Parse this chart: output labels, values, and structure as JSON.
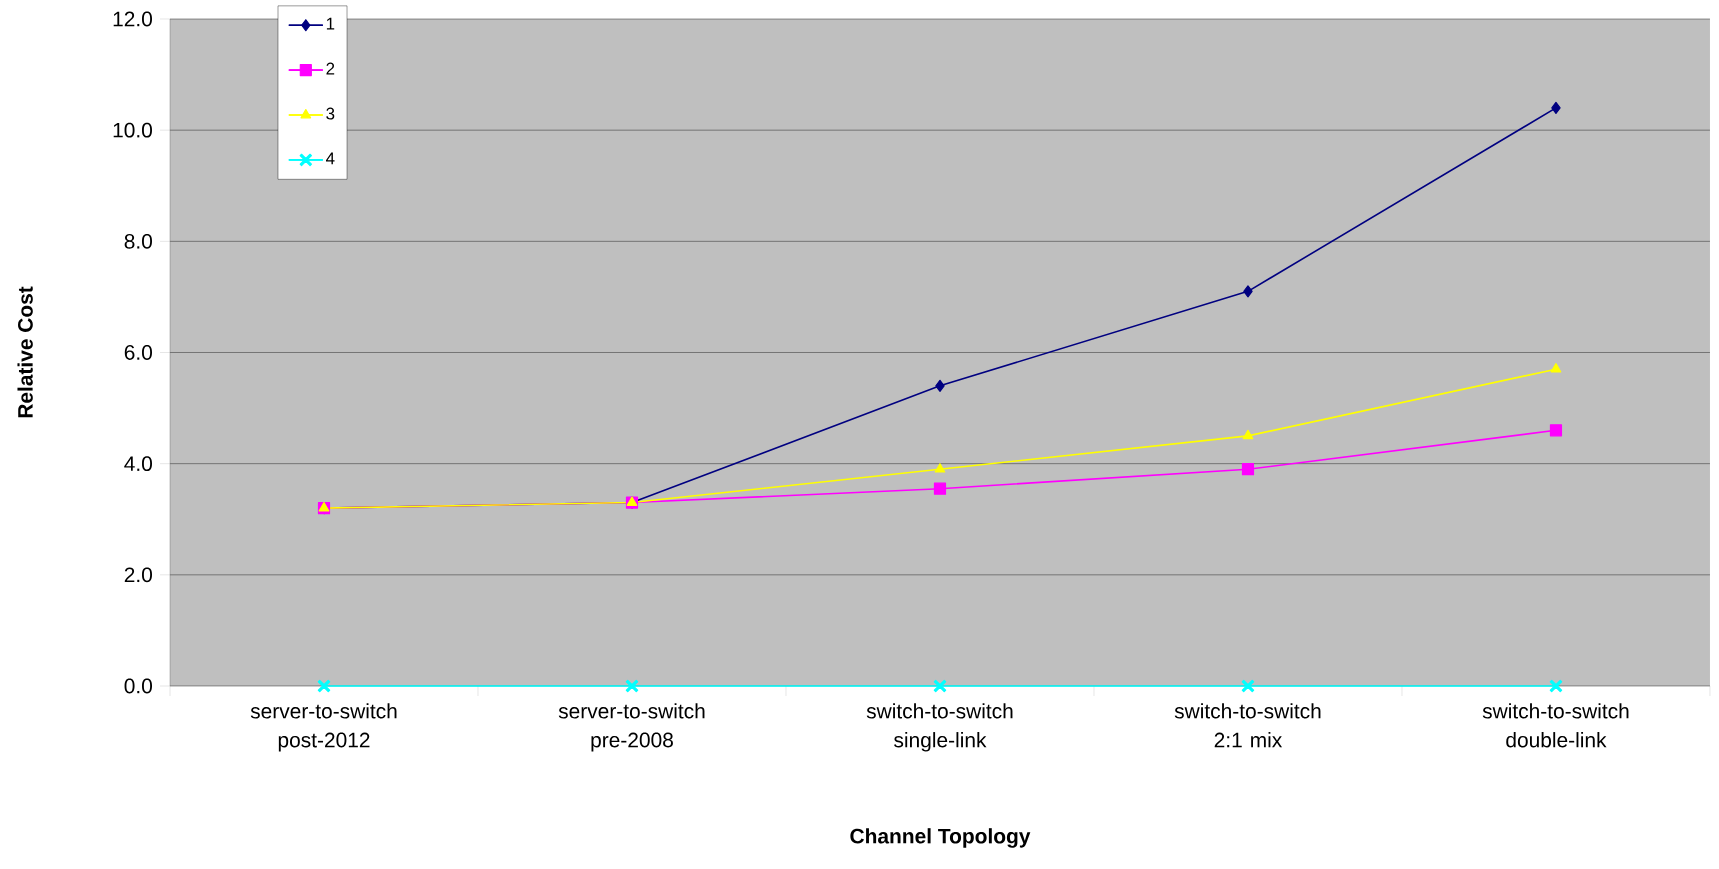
{
  "chart_data": {
    "type": "line",
    "xlabel": "Channel Topology",
    "ylabel": "Relative Cost",
    "categories": [
      "server-to-switch post-2012",
      "server-to-switch pre-2008",
      "switch-to-switch single-link",
      "switch-to-switch 2:1 mix",
      "switch-to-switch double-link"
    ],
    "series": [
      {
        "name": "1",
        "color": "#000080",
        "marker": "diamond",
        "values": [
          3.2,
          3.3,
          5.4,
          7.1,
          10.4
        ]
      },
      {
        "name": "2",
        "color": "#ff00ff",
        "marker": "square",
        "values": [
          3.2,
          3.3,
          3.55,
          3.9,
          4.6
        ]
      },
      {
        "name": "3",
        "color": "#ffff00",
        "marker": "triangle",
        "values": [
          3.2,
          3.3,
          3.9,
          4.5,
          5.7
        ]
      },
      {
        "name": "4",
        "color": "#00ffff",
        "marker": "cross",
        "values": [
          0,
          0,
          0,
          0,
          0
        ]
      }
    ],
    "ylim": [
      0,
      12
    ],
    "yticks": [
      {
        "value": 0,
        "label": "0.0"
      },
      {
        "value": 2,
        "label": "2.0"
      },
      {
        "value": 4,
        "label": "4.0"
      },
      {
        "value": 6,
        "label": "6.0"
      },
      {
        "value": 8,
        "label": "8.0"
      },
      {
        "value": 10,
        "label": "10.0"
      },
      {
        "value": 12,
        "label": "12.0"
      }
    ],
    "grid": "y",
    "legend": "top left",
    "line_style": "solid"
  }
}
